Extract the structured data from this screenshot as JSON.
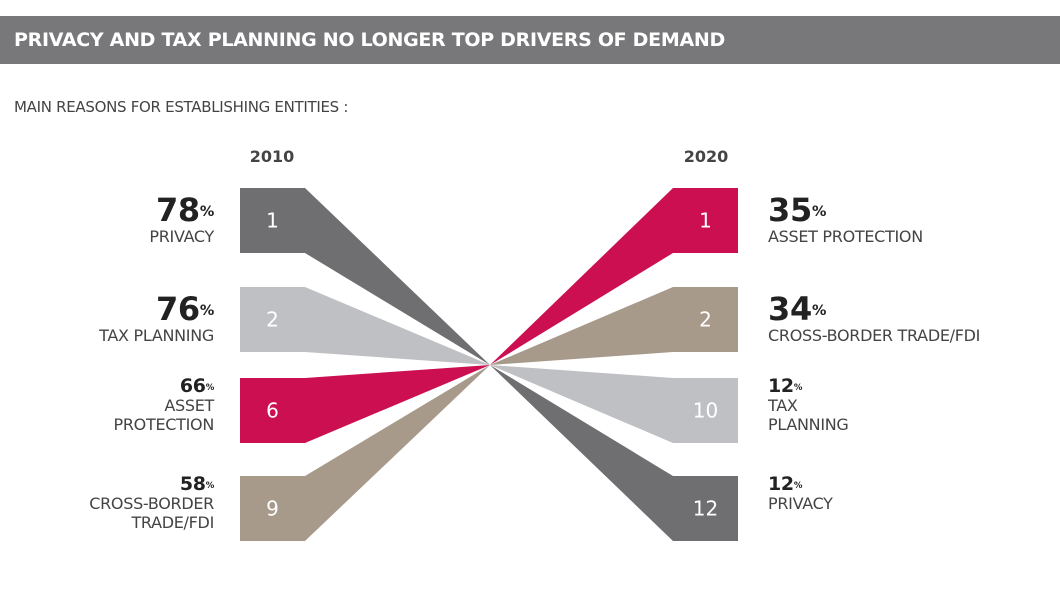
{
  "header": {
    "title": "PRIVACY AND TAX PLANNING NO LONGER TOP DRIVERS OF DEMAND"
  },
  "subtitle": "MAIN REASONS FOR ESTABLISHING ENTITIES :",
  "chart_data": {
    "type": "slope-rank",
    "years": [
      "2010",
      "2020"
    ],
    "percent_sign": "%",
    "colors": {
      "privacy": "#6f6f72",
      "tax_planning": "#bfc0c3",
      "asset_protection": "#cc0f50",
      "cross_border": "#a89a8b"
    },
    "items": [
      {
        "key": "privacy",
        "label_2010": "PRIVACY",
        "label_2020": "PRIVACY",
        "rank_2010": 1,
        "pct_2010": 78,
        "rank_2020": 12,
        "pct_2020": 12
      },
      {
        "key": "tax_planning",
        "label_2010": "TAX PLANNING",
        "label_2020": "TAX PLANNING",
        "rank_2010": 2,
        "pct_2010": 76,
        "rank_2020": 10,
        "pct_2020": 12
      },
      {
        "key": "asset_protection",
        "label_2010": "ASSET PROTECTION",
        "label_2020": "ASSET PROTECTION",
        "rank_2010": 6,
        "pct_2010": 66,
        "rank_2020": 1,
        "pct_2020": 35
      },
      {
        "key": "cross_border",
        "label_2010": "CROSS-BORDER TRADE/FDI",
        "label_2020": "CROSS-BORDER TRADE/FDI",
        "rank_2010": 9,
        "pct_2010": 58,
        "rank_2020": 2,
        "pct_2020": 34
      }
    ]
  }
}
